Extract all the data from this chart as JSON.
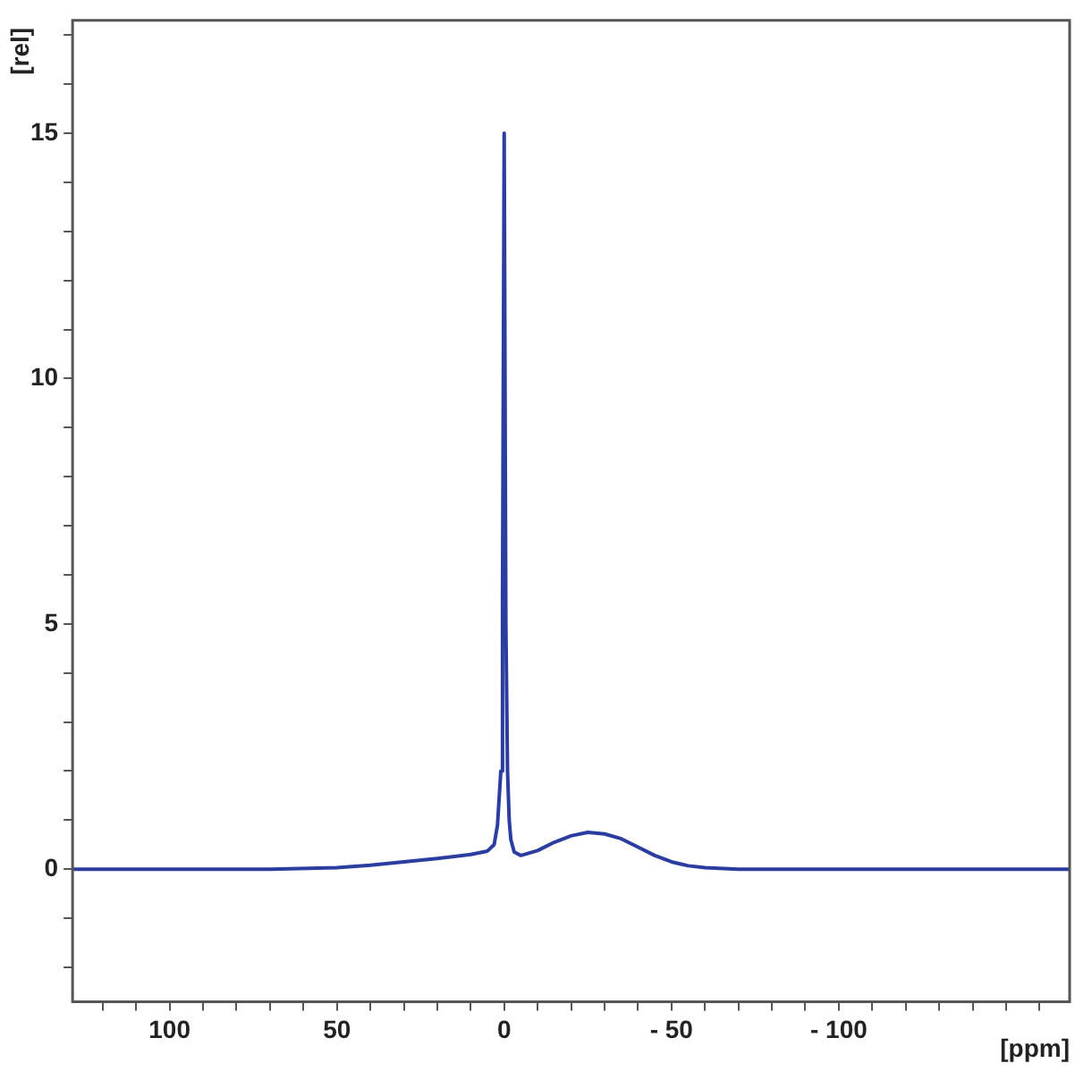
{
  "chart_data": {
    "type": "line",
    "xlabel": "[ppm]",
    "ylabel": "[rel]",
    "xlim": [
      129,
      -169
    ],
    "ylim": [
      -2.7,
      17.3
    ],
    "xticks": [
      {
        "value": 120,
        "label": null
      },
      {
        "value": 110,
        "label": null
      },
      100,
      {
        "value": 90,
        "label": null
      },
      {
        "value": 80,
        "label": null
      },
      {
        "value": 70,
        "label": null
      },
      {
        "value": 60,
        "label": null
      },
      50,
      {
        "value": 40,
        "label": null
      },
      {
        "value": 30,
        "label": null
      },
      {
        "value": 20,
        "label": null
      },
      {
        "value": 10,
        "label": null
      },
      0,
      {
        "value": -10,
        "label": null
      },
      {
        "value": -20,
        "label": null
      },
      {
        "value": -30,
        "label": null
      },
      {
        "value": -40,
        "label": null
      },
      {
        "value": -50,
        "label": "- 50"
      },
      {
        "value": -60,
        "label": null
      },
      {
        "value": -70,
        "label": null
      },
      {
        "value": -80,
        "label": null
      },
      {
        "value": -90,
        "label": null
      },
      {
        "value": -100,
        "label": "- 100"
      },
      {
        "value": -110,
        "label": null
      },
      {
        "value": -120,
        "label": null
      },
      {
        "value": -130,
        "label": null
      },
      {
        "value": -140,
        "label": null
      },
      {
        "value": -150,
        "label": null
      },
      {
        "value": -160,
        "label": null
      }
    ],
    "yticks": [
      {
        "value": -2,
        "label": null
      },
      {
        "value": -1,
        "label": null
      },
      0,
      {
        "value": 1,
        "label": null
      },
      {
        "value": 2,
        "label": null
      },
      {
        "value": 3,
        "label": null
      },
      {
        "value": 4,
        "label": null
      },
      5,
      {
        "value": 6,
        "label": null
      },
      {
        "value": 7,
        "label": null
      },
      {
        "value": 8,
        "label": null
      },
      {
        "value": 9,
        "label": null
      },
      10,
      {
        "value": 11,
        "label": null
      },
      {
        "value": 12,
        "label": null
      },
      {
        "value": 13,
        "label": null
      },
      {
        "value": 14,
        "label": null
      },
      15,
      {
        "value": 16,
        "label": null
      },
      {
        "value": 17,
        "label": null
      }
    ],
    "grid": false,
    "legend": false,
    "marker": "none",
    "line_style": "solid",
    "x": [
      129,
      110,
      90,
      70,
      50,
      40,
      30,
      20,
      10,
      5,
      3,
      2,
      1,
      0.5,
      0,
      -0.5,
      -1,
      -1.5,
      -2,
      -3,
      -5,
      -10,
      -15,
      -20,
      -25,
      -30,
      -35,
      -40,
      -45,
      -50,
      -55,
      -60,
      -70,
      -100,
      -130,
      -169
    ],
    "series": [
      {
        "color": "#2b3ea0",
        "values": [
          0,
          0,
          0,
          0,
          0.03,
          0.08,
          0.15,
          0.22,
          0.3,
          0.37,
          0.5,
          0.9,
          2,
          5.5,
          15,
          5,
          2,
          1,
          0.6,
          0.35,
          0.28,
          0.38,
          0.55,
          0.68,
          0.75,
          0.72,
          0.62,
          0.45,
          0.28,
          0.15,
          0.07,
          0.03,
          0,
          0,
          0,
          0
        ]
      }
    ]
  }
}
